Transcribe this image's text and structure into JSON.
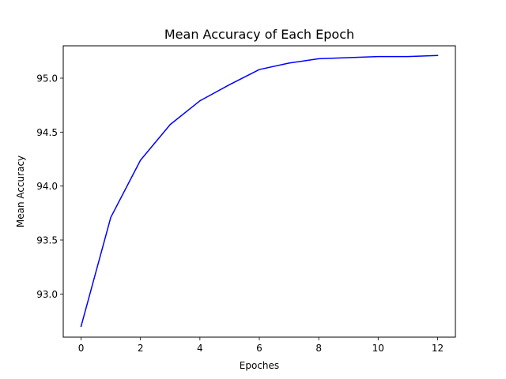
{
  "chart_data": {
    "type": "line",
    "title": "Mean Accuracy of Each Epoch",
    "xlabel": "Epoches",
    "ylabel": "Mean Accuracy",
    "xlim": [
      -0.6,
      12.6
    ],
    "ylim": [
      92.6,
      95.3
    ],
    "xticks": [
      0,
      2,
      4,
      6,
      8,
      10,
      12
    ],
    "yticks": [
      93.0,
      93.5,
      94.0,
      94.5,
      95.0
    ],
    "ytick_labels": [
      "93.0",
      "93.5",
      "94.0",
      "94.5",
      "95.0"
    ],
    "grid": false,
    "series": [
      {
        "color": "#0000ff",
        "x": [
          0,
          1,
          2,
          3,
          4,
          5,
          6,
          7,
          8,
          9,
          10,
          11,
          12
        ],
        "y": [
          92.7,
          93.71,
          94.24,
          94.57,
          94.79,
          94.94,
          95.08,
          95.14,
          95.18,
          95.19,
          95.2,
          95.2,
          95.21
        ]
      }
    ]
  }
}
